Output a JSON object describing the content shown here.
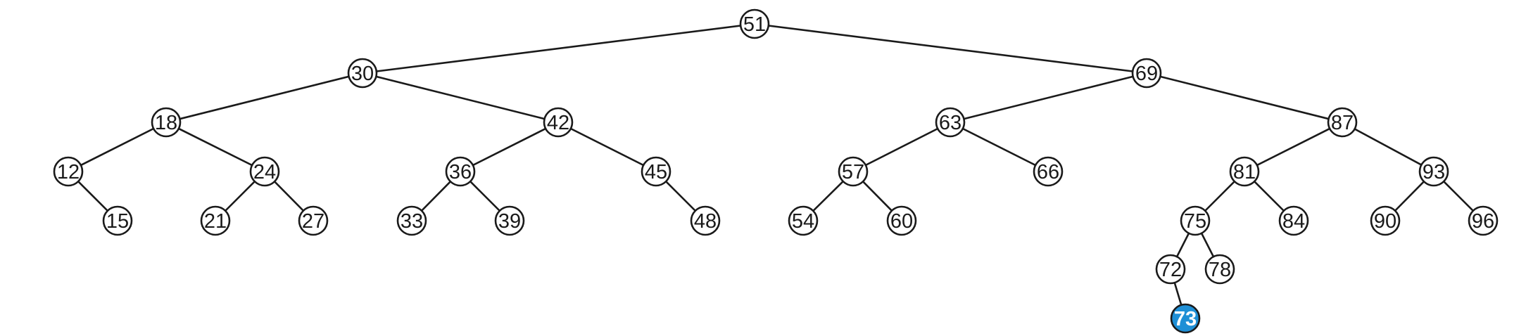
{
  "diagram": {
    "type": "binary-search-tree",
    "colors": {
      "edge": "#1a1a1a",
      "node_fill": "#ffffff",
      "node_stroke": "#1a1a1a",
      "text": "#1a1a1a",
      "highlight_fill": "#1e8fd6",
      "highlight_text": "#ffffff"
    },
    "nodes": [
      {
        "key": "51",
        "parent": null
      },
      {
        "key": "30",
        "parent": "51"
      },
      {
        "key": "69",
        "parent": "51"
      },
      {
        "key": "18",
        "parent": "30"
      },
      {
        "key": "42",
        "parent": "30"
      },
      {
        "key": "63",
        "parent": "69"
      },
      {
        "key": "87",
        "parent": "69"
      },
      {
        "key": "12",
        "parent": "18"
      },
      {
        "key": "24",
        "parent": "18"
      },
      {
        "key": "36",
        "parent": "42"
      },
      {
        "key": "45",
        "parent": "42"
      },
      {
        "key": "57",
        "parent": "63"
      },
      {
        "key": "66",
        "parent": "63"
      },
      {
        "key": "81",
        "parent": "87"
      },
      {
        "key": "93",
        "parent": "87"
      },
      {
        "key": "15",
        "parent": "12"
      },
      {
        "key": "21",
        "parent": "24"
      },
      {
        "key": "27",
        "parent": "24"
      },
      {
        "key": "33",
        "parent": "36"
      },
      {
        "key": "39",
        "parent": "36"
      },
      {
        "key": "48",
        "parent": "45"
      },
      {
        "key": "54",
        "parent": "57"
      },
      {
        "key": "60",
        "parent": "57"
      },
      {
        "key": "75",
        "parent": "81"
      },
      {
        "key": "84",
        "parent": "81"
      },
      {
        "key": "90",
        "parent": "93"
      },
      {
        "key": "96",
        "parent": "93"
      },
      {
        "key": "72",
        "parent": "75"
      },
      {
        "key": "78",
        "parent": "75"
      },
      {
        "key": "73",
        "parent": "72",
        "highlighted": true
      }
    ]
  }
}
